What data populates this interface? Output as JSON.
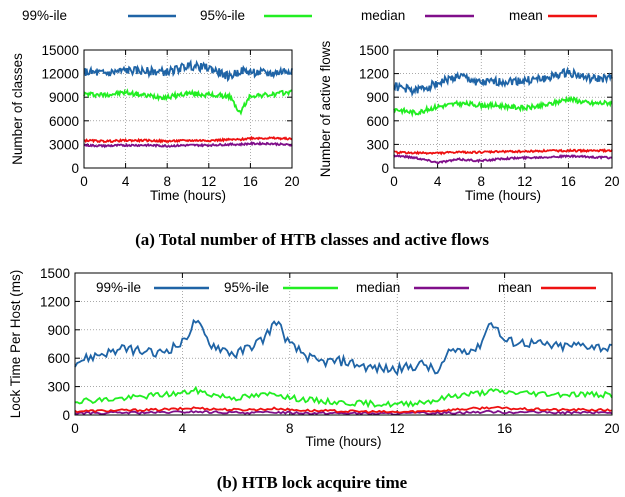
{
  "legend": [
    {
      "name": "99%-ile",
      "color": "#1f64a6"
    },
    {
      "name": "95%-ile",
      "color": "#22ee22"
    },
    {
      "name": "median",
      "color": "#800f8a"
    },
    {
      "name": "mean",
      "color": "#ee1111"
    }
  ],
  "captions": {
    "a": "(a) Total number of HTB classes and active flows",
    "b": "(b) HTB lock acquire time"
  },
  "chart_data": [
    {
      "id": "classes",
      "type": "line",
      "xlabel": "Time (hours)",
      "ylabel": "Number of classes",
      "xlim": [
        0,
        20
      ],
      "ylim": [
        0,
        15000
      ],
      "xticks": [
        0,
        4,
        8,
        12,
        16,
        20
      ],
      "yticks": [
        0,
        3000,
        6000,
        9000,
        12000,
        15000
      ],
      "grid": true,
      "x": [
        0,
        2,
        4,
        6,
        8,
        10,
        12,
        14,
        15,
        16,
        18,
        20
      ],
      "series": [
        {
          "name": "99%-ile",
          "values": [
            12200,
            12000,
            12400,
            12300,
            12200,
            13000,
            12700,
            11600,
            12400,
            12200,
            12000,
            12500
          ]
        },
        {
          "name": "95%-ile",
          "values": [
            9400,
            9300,
            9600,
            9200,
            9000,
            9500,
            9300,
            9100,
            7000,
            9200,
            9300,
            9700
          ]
        },
        {
          "name": "median",
          "values": [
            2900,
            2800,
            2900,
            2900,
            2800,
            2900,
            2900,
            3000,
            3000,
            3100,
            3100,
            2900
          ]
        },
        {
          "name": "mean",
          "values": [
            3500,
            3400,
            3500,
            3500,
            3400,
            3500,
            3500,
            3600,
            3600,
            3800,
            3800,
            3700
          ]
        }
      ]
    },
    {
      "id": "flows",
      "type": "line",
      "xlabel": "Time (hours)",
      "ylabel": "Number of active flows",
      "xlim": [
        0,
        20
      ],
      "ylim": [
        0,
        1500
      ],
      "xticks": [
        0,
        4,
        8,
        12,
        16,
        20
      ],
      "yticks": [
        0,
        300,
        600,
        900,
        1200,
        1500
      ],
      "grid": true,
      "x": [
        0,
        2,
        4,
        6,
        8,
        10,
        12,
        14,
        16,
        18,
        20
      ],
      "series": [
        {
          "name": "99%-ile",
          "values": [
            1040,
            980,
            1080,
            1170,
            1080,
            1100,
            1110,
            1140,
            1220,
            1130,
            1140
          ]
        },
        {
          "name": "95%-ile",
          "values": [
            750,
            700,
            780,
            820,
            800,
            790,
            760,
            800,
            880,
            820,
            830
          ]
        },
        {
          "name": "median",
          "values": [
            160,
            130,
            70,
            110,
            90,
            120,
            130,
            140,
            150,
            140,
            130
          ]
        },
        {
          "name": "mean",
          "values": [
            200,
            190,
            190,
            200,
            200,
            210,
            210,
            220,
            220,
            220,
            220
          ]
        }
      ]
    },
    {
      "id": "lock",
      "type": "line",
      "xlabel": "Time (hours)",
      "ylabel": "Lock Time Per Host (ms)",
      "xlim": [
        0,
        20
      ],
      "ylim": [
        0,
        1500
      ],
      "xticks": [
        0,
        4,
        8,
        12,
        16,
        20
      ],
      "yticks": [
        0,
        300,
        600,
        900,
        1200,
        1500
      ],
      "grid": true,
      "x": [
        0,
        1,
        2,
        3,
        4,
        4.5,
        5,
        6,
        7,
        7.5,
        8,
        9,
        10,
        11,
        12,
        13,
        13.5,
        14,
        15,
        15.5,
        16,
        17,
        18,
        19,
        20
      ],
      "series": [
        {
          "name": "99%-ile",
          "values": [
            560,
            650,
            700,
            640,
            760,
            1000,
            760,
            640,
            800,
            1000,
            740,
            560,
            570,
            500,
            480,
            540,
            440,
            680,
            700,
            1000,
            780,
            760,
            720,
            740,
            700
          ]
        },
        {
          "name": "95%-ile",
          "values": [
            150,
            160,
            180,
            210,
            230,
            260,
            220,
            180,
            210,
            230,
            180,
            150,
            130,
            120,
            110,
            140,
            160,
            200,
            230,
            250,
            240,
            230,
            220,
            220,
            210
          ]
        },
        {
          "name": "median",
          "values": [
            20,
            20,
            25,
            25,
            30,
            35,
            30,
            25,
            25,
            30,
            25,
            20,
            20,
            15,
            15,
            20,
            20,
            25,
            30,
            35,
            30,
            30,
            25,
            25,
            25
          ]
        },
        {
          "name": "mean",
          "values": [
            40,
            45,
            50,
            55,
            65,
            75,
            65,
            55,
            60,
            70,
            55,
            45,
            40,
            35,
            30,
            40,
            45,
            55,
            70,
            80,
            70,
            60,
            55,
            55,
            50
          ]
        }
      ]
    }
  ]
}
